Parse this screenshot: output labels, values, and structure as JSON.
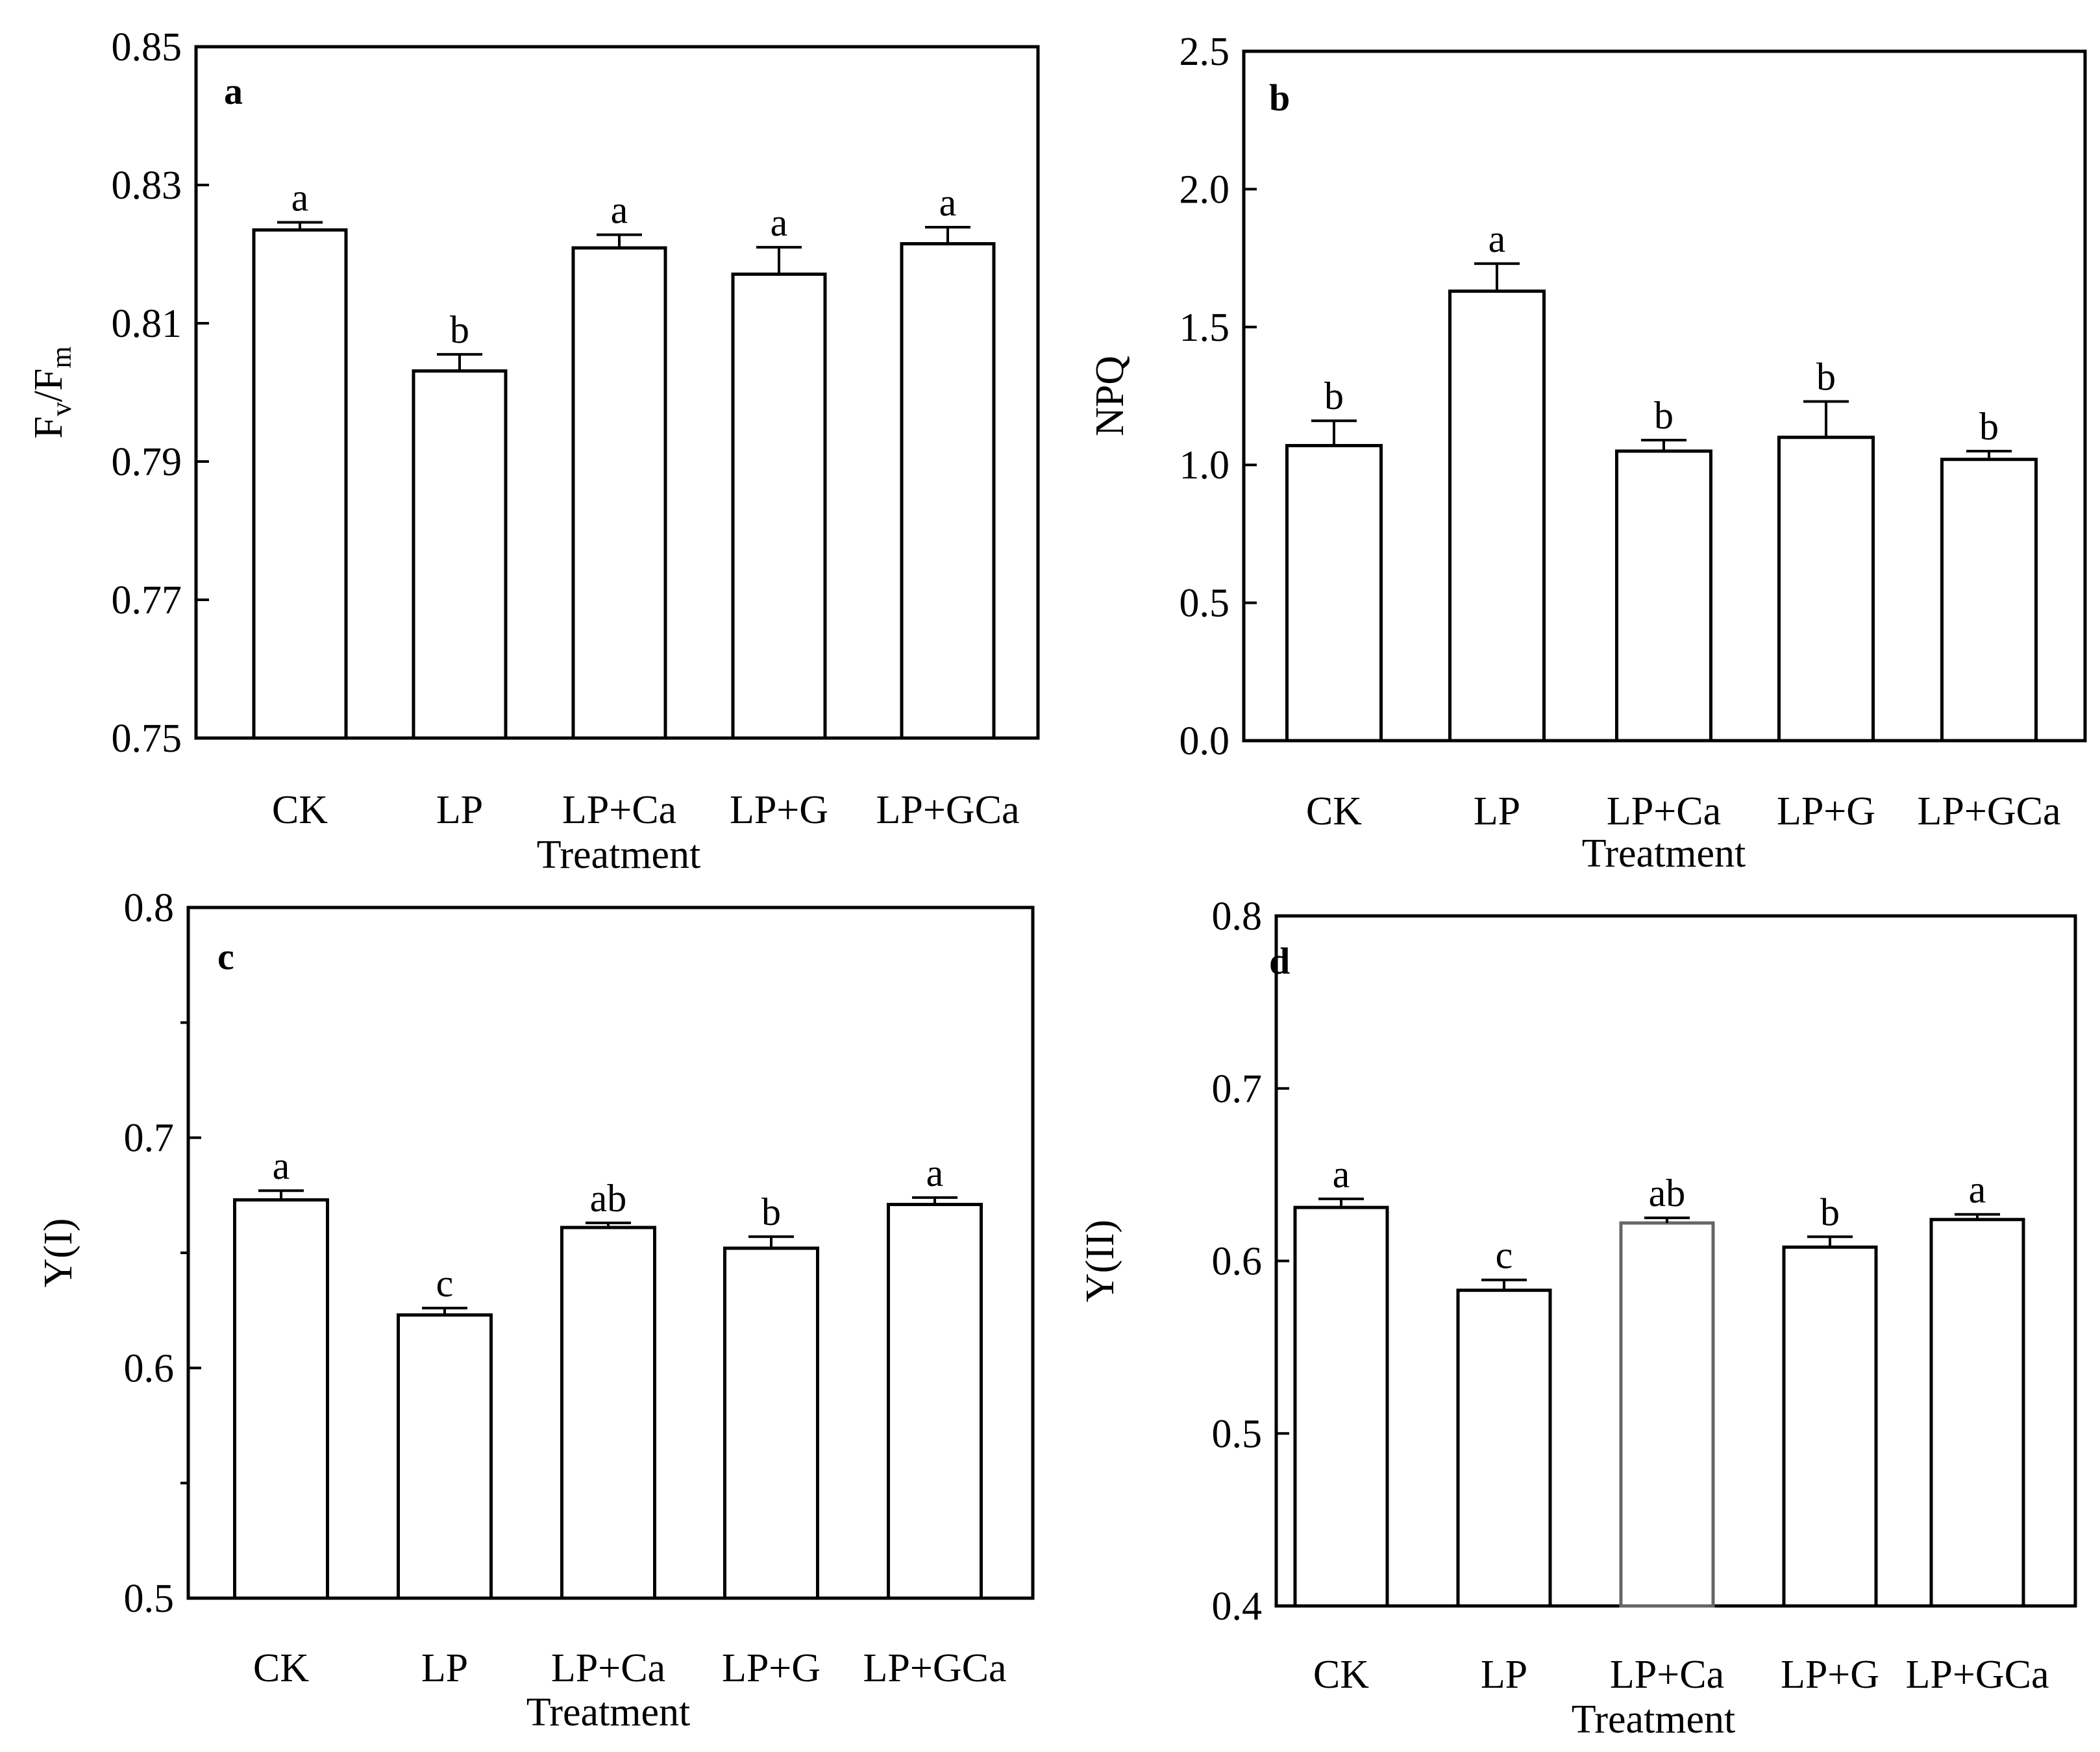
{
  "chart_data": [
    {
      "type": "bar",
      "panel": "a",
      "categories": [
        "CK",
        "LP",
        "LP+Ca",
        "LP+G",
        "LP+GCa"
      ],
      "values": [
        0.8235,
        0.8031,
        0.8209,
        0.8171,
        0.8215
      ],
      "errors": [
        0.0011,
        0.0024,
        0.0019,
        0.0039,
        0.0024
      ],
      "significance": [
        "a",
        "b",
        "a",
        "a",
        "a"
      ],
      "ylabel_main": "F",
      "ylabel_sub1": "v",
      "ylabel_sep": "/F",
      "ylabel_sub2": "m",
      "xlabel": "Treatment",
      "ylim": [
        0.75,
        0.85
      ],
      "yticks": [
        0.75,
        0.77,
        0.79,
        0.81,
        0.83,
        0.85
      ],
      "ytick_labels": [
        "0.75",
        "0.77",
        "0.79",
        "0.81",
        "0.83",
        "0.85"
      ],
      "minor_ticks": []
    },
    {
      "type": "bar",
      "panel": "b",
      "categories": [
        "CK",
        "LP",
        "LP+Ca",
        "LP+G",
        "LP+GCa"
      ],
      "values": [
        1.07,
        1.63,
        1.05,
        1.1,
        1.02
      ],
      "errors": [
        0.09,
        0.1,
        0.04,
        0.13,
        0.03
      ],
      "significance": [
        "b",
        "a",
        "b",
        "b",
        "b"
      ],
      "ylabel": "NPQ",
      "xlabel": "Treatment",
      "ylim": [
        0,
        2.5
      ],
      "yticks": [
        0,
        0.5,
        1,
        1.5,
        2,
        2.5
      ],
      "ytick_labels": [
        "0.0",
        "0.5",
        "1.0",
        "1.5",
        "2.0",
        "2.5"
      ],
      "minor_ticks": []
    },
    {
      "type": "bar",
      "panel": "c",
      "categories": [
        "CK",
        "LP",
        "LP+Ca",
        "LP+G",
        "LP+GCa"
      ],
      "values": [
        0.673,
        0.623,
        0.661,
        0.652,
        0.671
      ],
      "errors": [
        0.004,
        0.003,
        0.002,
        0.005,
        0.003
      ],
      "significance": [
        "a",
        "c",
        "ab",
        "b",
        "a"
      ],
      "ylabel": "Y(I)",
      "xlabel": "Treatment",
      "ylim": [
        0.5,
        0.8
      ],
      "yticks": [
        0.5,
        0.6,
        0.7,
        0.8
      ],
      "ytick_labels": [
        "0.5",
        "0.6",
        "0.7",
        "0.8"
      ],
      "minor_ticks": [
        0.55,
        0.65,
        0.75
      ]
    },
    {
      "type": "bar",
      "panel": "d",
      "categories": [
        "CK",
        "LP",
        "LP+Ca",
        "LP+G",
        "LP+GCa"
      ],
      "values": [
        0.631,
        0.583,
        0.622,
        0.608,
        0.624
      ],
      "errors": [
        0.005,
        0.006,
        0.003,
        0.006,
        0.003
      ],
      "significance": [
        "a",
        "c",
        "ab",
        "b",
        "a"
      ],
      "ylabel": "Y(II)",
      "xlabel": "Treatment",
      "ylim": [
        0.4,
        0.8
      ],
      "yticks": [
        0.4,
        0.5,
        0.6,
        0.7,
        0.8
      ],
      "ytick_labels": [
        "0.4",
        "0.5",
        "0.6",
        "0.7",
        "0.8"
      ],
      "minor_ticks": []
    }
  ],
  "colors": {
    "axis": "#000000",
    "bar_fill": "#ffffff",
    "bar_stroke": "#000000",
    "bar_stroke_alt": "#666666"
  }
}
